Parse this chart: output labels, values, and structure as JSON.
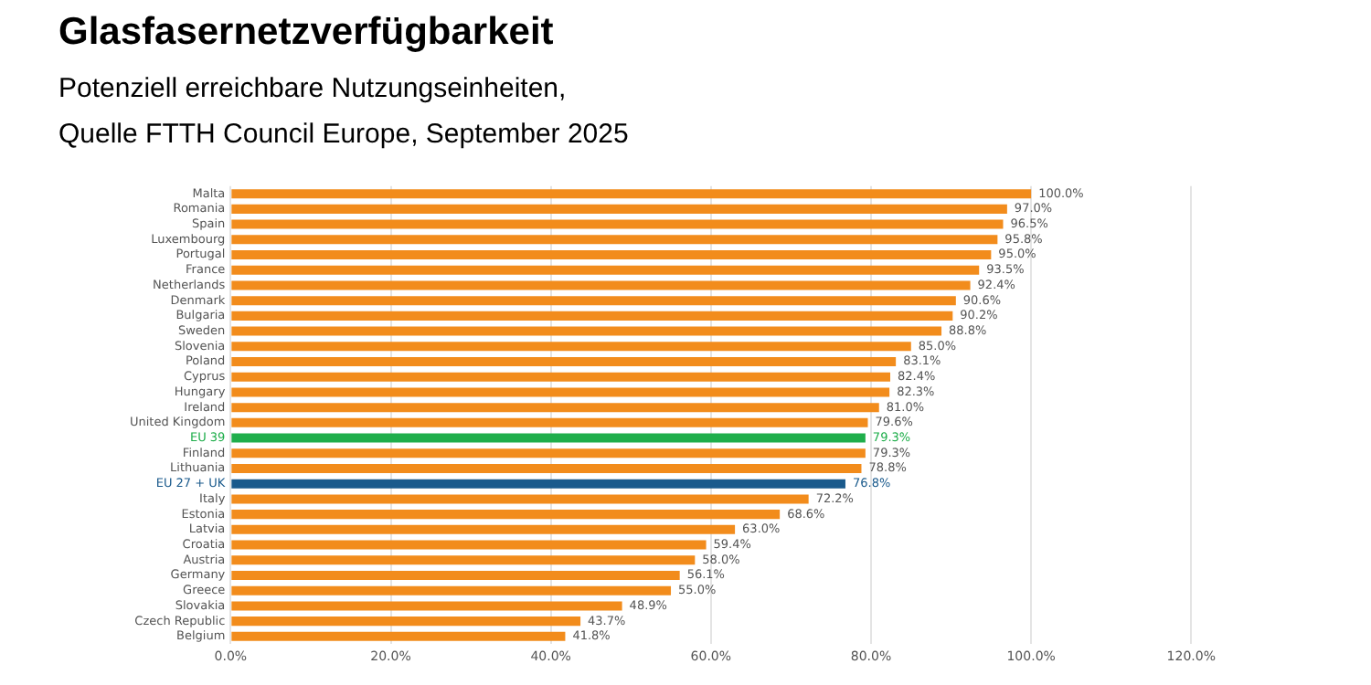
{
  "chart_data": {
    "type": "bar",
    "orientation": "horizontal",
    "title": "Glasfasernetzverfügbarkeit",
    "subtitle": "Potenziell erreichbare Nutzungseinheiten,\nQuelle FTTH Council Europe, September 2025",
    "categories": [
      "Malta",
      "Romania",
      "Spain",
      "Luxembourg",
      "Portugal",
      "France",
      "Netherlands",
      "Denmark",
      "Bulgaria",
      "Sweden",
      "Slovenia",
      "Poland",
      "Cyprus",
      "Hungary",
      "Ireland",
      "United Kingdom",
      "EU 39",
      "Finland",
      "Lithuania",
      "EU 27 + UK",
      "Italy",
      "Estonia",
      "Latvia",
      "Croatia",
      "Austria",
      "Germany",
      "Greece",
      "Slovakia",
      "Czech Republic",
      "Belgium"
    ],
    "values": [
      100.0,
      97.0,
      96.5,
      95.8,
      95.0,
      93.5,
      92.4,
      90.6,
      90.2,
      88.8,
      85.0,
      83.1,
      82.4,
      82.3,
      81.0,
      79.6,
      79.3,
      79.3,
      78.8,
      76.8,
      72.2,
      68.6,
      63.0,
      59.4,
      58.0,
      56.1,
      55.0,
      48.9,
      43.7,
      41.8
    ],
    "value_labels": [
      "100.0%",
      "97.0%",
      "96.5%",
      "95.8%",
      "95.0%",
      "93.5%",
      "92.4%",
      "90.6%",
      "90.2%",
      "88.8%",
      "85.0%",
      "83.1%",
      "82.4%",
      "82.3%",
      "81.0%",
      "79.6%",
      "79.3%",
      "79.3%",
      "78.8%",
      "76.8%",
      "72.2%",
      "68.6%",
      "63.0%",
      "59.4%",
      "58.0%",
      "56.1%",
      "55.0%",
      "48.9%",
      "43.7%",
      "41.8%"
    ],
    "colors": [
      "#f28c1c",
      "#f28c1c",
      "#f28c1c",
      "#f28c1c",
      "#f28c1c",
      "#f28c1c",
      "#f28c1c",
      "#f28c1c",
      "#f28c1c",
      "#f28c1c",
      "#f28c1c",
      "#f28c1c",
      "#f28c1c",
      "#f28c1c",
      "#f28c1c",
      "#f28c1c",
      "#1fae4b",
      "#f28c1c",
      "#f28c1c",
      "#1a5a8c",
      "#f28c1c",
      "#f28c1c",
      "#f28c1c",
      "#f28c1c",
      "#f28c1c",
      "#f28c1c",
      "#f28c1c",
      "#f28c1c",
      "#f28c1c",
      "#f28c1c"
    ],
    "xlim": [
      0,
      120
    ],
    "xticks": [
      {
        "value": 0,
        "label": "0.0%"
      },
      {
        "value": 20,
        "label": "20.0%"
      },
      {
        "value": 40,
        "label": "40.0%"
      },
      {
        "value": 60,
        "label": "60.0%"
      },
      {
        "value": 80,
        "label": "80.0%"
      },
      {
        "value": 100,
        "label": "100.0%"
      },
      {
        "value": 120,
        "label": "120.0%"
      }
    ],
    "grid": "x",
    "legend": false
  }
}
